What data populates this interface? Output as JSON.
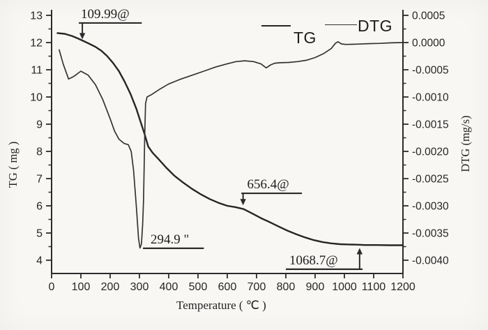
{
  "colors": {
    "line": "#2b2b2b",
    "tg_line": "#262626",
    "dtg_line": "#333333",
    "text": "#222222",
    "background": "#f8f7f4"
  },
  "figure": {
    "x_axis": {
      "label": "Temperature ( ℃ )",
      "min": 0,
      "max": 1200,
      "ticks": [
        0,
        100,
        200,
        300,
        400,
        500,
        600,
        700,
        800,
        900,
        1000,
        1100,
        1200
      ]
    },
    "y_left": {
      "label": "TG ( mg )",
      "min": 4,
      "max": 13,
      "ticks": [
        13,
        12,
        11,
        10,
        9,
        8,
        7,
        6,
        5,
        4
      ]
    },
    "y_right": {
      "label": "DTG (mg/s)",
      "min": -0.004,
      "max": 0.0005,
      "ticks": [
        "0.0005",
        "0.0000",
        "-0.0005",
        "-0.0010",
        "-0.0015",
        "-0.0020",
        "-0.0025",
        "-0.0030",
        "-0.0035",
        "-0.0040"
      ]
    },
    "legend": [
      {
        "label": "TG"
      },
      {
        "label": "DTG"
      }
    ]
  },
  "chart_data": {
    "type": "line",
    "title": "",
    "xlabel": "Temperature ( ℃ )",
    "ylabel_left": "TG ( mg )",
    "ylabel_right": "DTG (mg/s)",
    "x_range": [
      0,
      1200
    ],
    "y_left_range": [
      4,
      13
    ],
    "y_right_range": [
      -0.004,
      0.0005
    ],
    "grid": false,
    "legend_position": "top-center",
    "series": [
      {
        "name": "TG",
        "axis": "left",
        "unit": "mg",
        "points": [
          [
            20,
            12.35
          ],
          [
            45,
            12.32
          ],
          [
            70,
            12.24
          ],
          [
            90,
            12.15
          ],
          [
            110,
            12.05
          ],
          [
            130,
            11.95
          ],
          [
            150,
            11.84
          ],
          [
            170,
            11.7
          ],
          [
            190,
            11.5
          ],
          [
            210,
            11.25
          ],
          [
            230,
            10.95
          ],
          [
            250,
            10.55
          ],
          [
            270,
            10.1
          ],
          [
            290,
            9.55
          ],
          [
            305,
            9.05
          ],
          [
            318,
            8.62
          ],
          [
            330,
            8.18
          ],
          [
            345,
            7.95
          ],
          [
            365,
            7.72
          ],
          [
            390,
            7.42
          ],
          [
            420,
            7.1
          ],
          [
            450,
            6.85
          ],
          [
            480,
            6.62
          ],
          [
            510,
            6.42
          ],
          [
            540,
            6.25
          ],
          [
            570,
            6.11
          ],
          [
            600,
            6.0
          ],
          [
            628,
            5.95
          ],
          [
            656,
            5.88
          ],
          [
            685,
            5.72
          ],
          [
            715,
            5.55
          ],
          [
            745,
            5.4
          ],
          [
            775,
            5.24
          ],
          [
            805,
            5.09
          ],
          [
            835,
            4.96
          ],
          [
            865,
            4.84
          ],
          [
            895,
            4.74
          ],
          [
            925,
            4.67
          ],
          [
            955,
            4.62
          ],
          [
            985,
            4.59
          ],
          [
            1015,
            4.58
          ],
          [
            1050,
            4.57
          ],
          [
            1069,
            4.56
          ],
          [
            1110,
            4.56
          ],
          [
            1155,
            4.55
          ],
          [
            1200,
            4.55
          ]
        ]
      },
      {
        "name": "DTG",
        "axis": "right",
        "unit": "mg/s",
        "points": [
          [
            26,
            -0.000135
          ],
          [
            40,
            -0.0004
          ],
          [
            58,
            -0.00067
          ],
          [
            75,
            -0.000625
          ],
          [
            100,
            -0.000525
          ],
          [
            125,
            -0.0006
          ],
          [
            150,
            -0.000775
          ],
          [
            175,
            -0.00105
          ],
          [
            200,
            -0.0014
          ],
          [
            215,
            -0.001625
          ],
          [
            230,
            -0.001775
          ],
          [
            248,
            -0.001855
          ],
          [
            262,
            -0.001875
          ],
          [
            272,
            -0.002
          ],
          [
            280,
            -0.00235
          ],
          [
            290,
            -0.00305
          ],
          [
            297,
            -0.0036
          ],
          [
            302,
            -0.003775
          ],
          [
            307,
            -0.0037
          ],
          [
            311,
            -0.00335
          ],
          [
            314,
            -0.0029
          ],
          [
            318,
            -0.0017
          ],
          [
            321,
            -0.00112
          ],
          [
            326,
            -0.001
          ],
          [
            340,
            -0.00096
          ],
          [
            370,
            -0.000855
          ],
          [
            400,
            -0.00076
          ],
          [
            440,
            -0.000675
          ],
          [
            480,
            -0.0006
          ],
          [
            520,
            -0.000525
          ],
          [
            560,
            -0.00045
          ],
          [
            600,
            -0.00039
          ],
          [
            630,
            -0.00035
          ],
          [
            660,
            -0.000335
          ],
          [
            690,
            -0.00035
          ],
          [
            715,
            -0.000392
          ],
          [
            733,
            -0.000465
          ],
          [
            748,
            -0.00041
          ],
          [
            762,
            -0.00038
          ],
          [
            780,
            -0.00037
          ],
          [
            810,
            -0.000365
          ],
          [
            840,
            -0.00035
          ],
          [
            870,
            -0.000325
          ],
          [
            900,
            -0.000275
          ],
          [
            930,
            -0.0002
          ],
          [
            955,
            -0.00011
          ],
          [
            969,
            -1.5e-05
          ],
          [
            978,
            1.5e-05
          ],
          [
            990,
            -2.5e-05
          ],
          [
            1005,
            -3.5e-05
          ],
          [
            1040,
            -3e-05
          ],
          [
            1080,
            -2e-05
          ],
          [
            1120,
            -1.5e-05
          ],
          [
            1160,
            -5e-06
          ],
          [
            1200,
            0.0
          ]
        ]
      }
    ],
    "annotations": [
      {
        "id": "peak-109",
        "text": "109.99@",
        "text_pos": {
          "x": 100,
          "v": 12.82
        },
        "line": {
          "x1": 93,
          "x2": 308,
          "v": 12.72
        },
        "arrow": {
          "x": 105,
          "v_from": 12.72,
          "v_to": 12.12,
          "dir": "down"
        }
      },
      {
        "id": "peak-294",
        "text": "294.9 \"",
        "text_pos": {
          "x": 338,
          "v": 4.54
        },
        "line": {
          "x1": 312,
          "x2": 520,
          "v": 4.44
        }
      },
      {
        "id": "peak-656",
        "text": "656.4@",
        "text_pos": {
          "x": 668,
          "v": 6.56
        },
        "line": {
          "x1": 648,
          "x2": 855,
          "v": 6.46
        },
        "arrow": {
          "x": 654,
          "v_from": 6.46,
          "v_to": 6.02,
          "dir": "down"
        }
      },
      {
        "id": "peak-1068",
        "text": "1068.7@",
        "text_pos": {
          "x": 812,
          "v": 3.77
        },
        "line": {
          "x1": 800,
          "x2": 1062,
          "v": 3.67
        },
        "arrow": {
          "x": 1052,
          "v_from": 3.67,
          "v_to": 4.45,
          "dir": "up"
        }
      }
    ]
  }
}
